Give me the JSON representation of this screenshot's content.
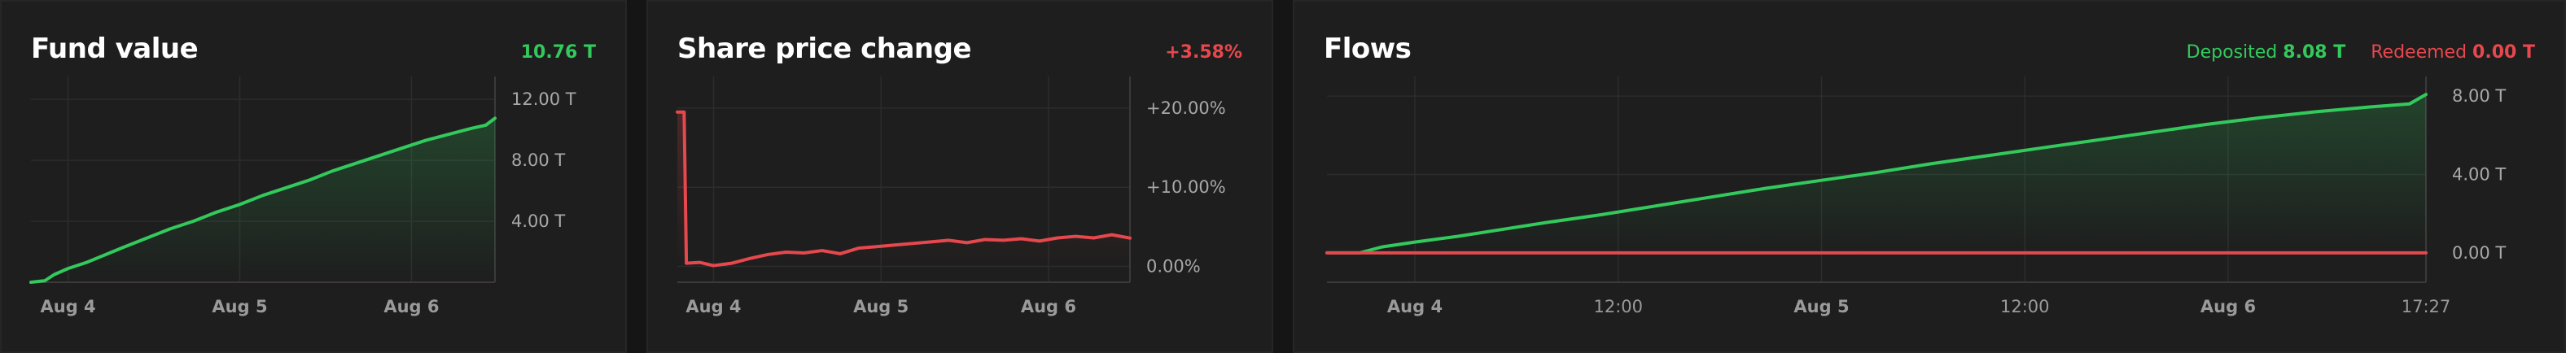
{
  "colors": {
    "green": "#33c95c",
    "red": "#e5484d",
    "panel": "#1e1e1e",
    "grid": "#2c2c2c"
  },
  "panels": {
    "fund": {
      "title": "Fund value",
      "headline": "10.76 T",
      "headline_color": "#33c95c"
    },
    "share": {
      "title": "Share price change",
      "headline": "+3.58%",
      "headline_color": "#e5484d"
    },
    "flows": {
      "title": "Flows",
      "deposited_label": "Deposited",
      "deposited_value": "8.08 T",
      "redeemed_label": "Redeemed",
      "redeemed_value": "0.00 T"
    }
  },
  "chart_data": [
    {
      "type": "area",
      "title": "Fund value",
      "x_tick_labels": [
        "Aug 4",
        "Aug 5",
        "Aug 6"
      ],
      "x_tick_positions": [
        0.08,
        0.45,
        0.82
      ],
      "y_tick_labels": [
        "4.00 T",
        "8.00 T",
        "12.00 T"
      ],
      "y_ticks": [
        4,
        8,
        12
      ],
      "ylim": [
        0,
        13.5
      ],
      "series": [
        {
          "color": "#33c95c",
          "x": [
            0,
            0.03,
            0.05,
            0.08,
            0.12,
            0.16,
            0.2,
            0.25,
            0.3,
            0.35,
            0.4,
            0.45,
            0.5,
            0.55,
            0.6,
            0.65,
            0.7,
            0.75,
            0.8,
            0.85,
            0.9,
            0.95,
            0.98,
            1.0
          ],
          "y": [
            0.0,
            0.1,
            0.5,
            0.9,
            1.3,
            1.8,
            2.3,
            2.9,
            3.5,
            4.0,
            4.6,
            5.1,
            5.7,
            6.2,
            6.7,
            7.3,
            7.8,
            8.3,
            8.8,
            9.3,
            9.7,
            10.1,
            10.3,
            10.76
          ]
        }
      ],
      "grid": true
    },
    {
      "type": "area",
      "title": "Share price change",
      "x_tick_labels": [
        "Aug 4",
        "Aug 5",
        "Aug 6"
      ],
      "x_tick_positions": [
        0.08,
        0.45,
        0.82
      ],
      "y_tick_labels": [
        "0.00%",
        "+10.00%",
        "+20.00%"
      ],
      "y_ticks": [
        0,
        10,
        20
      ],
      "ylim": [
        -2,
        24
      ],
      "series": [
        {
          "color": "#e5484d",
          "x": [
            0,
            0.015,
            0.02,
            0.05,
            0.08,
            0.12,
            0.16,
            0.2,
            0.24,
            0.28,
            0.32,
            0.36,
            0.4,
            0.44,
            0.48,
            0.52,
            0.56,
            0.6,
            0.64,
            0.68,
            0.72,
            0.76,
            0.8,
            0.84,
            0.88,
            0.92,
            0.96,
            1.0
          ],
          "y": [
            19.5,
            19.5,
            0.4,
            0.5,
            0.1,
            0.4,
            1.0,
            1.5,
            1.8,
            1.7,
            2.0,
            1.6,
            2.3,
            2.5,
            2.7,
            2.9,
            3.1,
            3.3,
            3.0,
            3.4,
            3.3,
            3.5,
            3.2,
            3.6,
            3.8,
            3.6,
            4.0,
            3.58
          ]
        }
      ],
      "grid": true
    },
    {
      "type": "area",
      "title": "Flows",
      "x_tick_labels": [
        "Aug 4",
        "12:00",
        "Aug 5",
        "12:00",
        "Aug 6",
        "17:27"
      ],
      "x_tick_positions": [
        0.08,
        0.265,
        0.45,
        0.635,
        0.82,
        1.0
      ],
      "x_tick_bold": [
        true,
        false,
        true,
        false,
        true,
        false
      ],
      "y_tick_labels": [
        "0.00 T",
        "4.00 T",
        "8.00 T"
      ],
      "y_ticks": [
        0,
        4,
        8
      ],
      "ylim": [
        -1.5,
        9
      ],
      "series": [
        {
          "name": "Deposited",
          "color": "#33c95c",
          "x": [
            0,
            0.03,
            0.05,
            0.08,
            0.12,
            0.16,
            0.2,
            0.25,
            0.3,
            0.35,
            0.4,
            0.45,
            0.5,
            0.55,
            0.6,
            0.65,
            0.7,
            0.75,
            0.8,
            0.85,
            0.9,
            0.95,
            0.985,
            1.0
          ],
          "y": [
            0.0,
            0.0,
            0.3,
            0.55,
            0.85,
            1.2,
            1.55,
            1.95,
            2.4,
            2.85,
            3.3,
            3.7,
            4.1,
            4.55,
            4.95,
            5.35,
            5.75,
            6.15,
            6.55,
            6.9,
            7.2,
            7.45,
            7.6,
            8.08
          ]
        },
        {
          "name": "Redeemed",
          "color": "#e5484d",
          "x": [
            0,
            1.0
          ],
          "y": [
            0.0,
            0.0
          ]
        }
      ],
      "grid": true
    }
  ]
}
